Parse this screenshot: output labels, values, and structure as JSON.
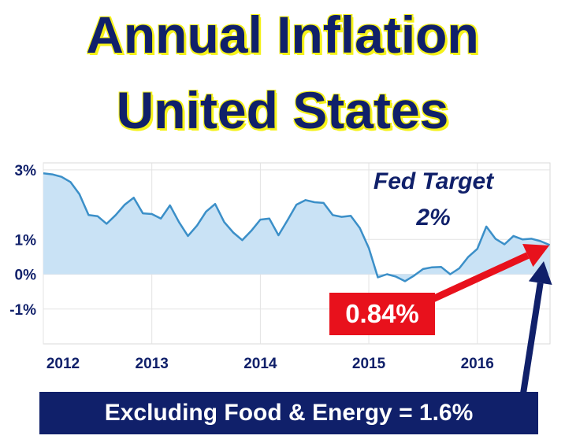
{
  "title_line1": "Annual Inflation",
  "title_line2": "United States",
  "annotation_line1": "Fed Target",
  "annotation_line2": "2%",
  "callout_value": "0.84%",
  "footer_note": "Excluding Food & Energy = 1.6%",
  "colors": {
    "title": "#10206a",
    "title_outline": "#f5f21a",
    "line": "#3b8fc8",
    "area": "#c9e2f5",
    "red_callout": "#e8111c",
    "navy_callout": "#10206a"
  },
  "chart_data": {
    "type": "area",
    "xlabel": "",
    "ylabel": "",
    "xlim": [
      2012.0,
      2016.67
    ],
    "ylim": [
      -2,
      3.2
    ],
    "y_ticks": [
      3,
      1,
      0,
      -1
    ],
    "y_tick_labels": [
      "3%",
      "1%",
      "0%",
      "-1%"
    ],
    "x_ticks": [
      2012,
      2013,
      2014,
      2015,
      2016
    ],
    "x_tick_labels": [
      "2012",
      "2013",
      "2014",
      "2015",
      "2016"
    ],
    "grid": true,
    "series": [
      {
        "x": [
          2012.0,
          2012.083,
          2012.167,
          2012.25,
          2012.333,
          2012.417,
          2012.5,
          2012.583,
          2012.667,
          2012.75,
          2012.833,
          2012.917,
          2013.0,
          2013.083,
          2013.167,
          2013.25,
          2013.333,
          2013.417,
          2013.5,
          2013.583,
          2013.667,
          2013.75,
          2013.833,
          2013.917,
          2014.0,
          2014.083,
          2014.167,
          2014.25,
          2014.333,
          2014.417,
          2014.5,
          2014.583,
          2014.667,
          2014.75,
          2014.833,
          2014.917,
          2015.0,
          2015.083,
          2015.167,
          2015.25,
          2015.333,
          2015.417,
          2015.5,
          2015.583,
          2015.667,
          2015.75,
          2015.833,
          2015.917,
          2016.0,
          2016.083,
          2016.167,
          2016.25,
          2016.333,
          2016.417,
          2016.5,
          2016.583,
          2016.667
        ],
        "values": [
          2.9,
          2.87,
          2.8,
          2.65,
          2.3,
          1.7,
          1.67,
          1.45,
          1.7,
          2.0,
          2.2,
          1.75,
          1.73,
          1.6,
          1.98,
          1.5,
          1.1,
          1.4,
          1.8,
          2.02,
          1.5,
          1.2,
          0.98,
          1.25,
          1.57,
          1.6,
          1.12,
          1.55,
          2.0,
          2.13,
          2.07,
          2.05,
          1.7,
          1.65,
          1.68,
          1.33,
          0.75,
          -0.09,
          0.0,
          -0.07,
          -0.2,
          -0.04,
          0.15,
          0.2,
          0.21,
          0.0,
          0.17,
          0.5,
          0.73,
          1.37,
          1.02,
          0.86,
          1.1,
          1.0,
          1.02,
          0.95,
          0.84
        ]
      }
    ]
  }
}
